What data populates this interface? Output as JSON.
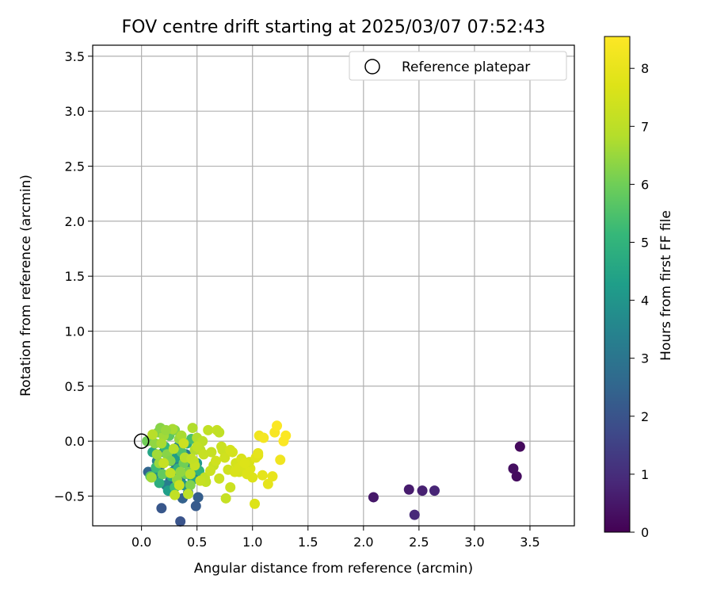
{
  "chart_data": {
    "type": "scatter",
    "title": "FOV centre drift starting at 2025/03/07 07:52:43",
    "xlabel": "Angular distance from reference (arcmin)",
    "ylabel": "Rotation from reference (arcmin)",
    "xlim": [
      -0.44,
      3.9
    ],
    "ylim": [
      -0.77,
      3.6
    ],
    "xticks": [
      "0.0",
      "0.5",
      "1.0",
      "1.5",
      "2.0",
      "2.5",
      "3.0",
      "3.5"
    ],
    "yticks": [
      "−0.5",
      "0.0",
      "0.5",
      "1.0",
      "1.5",
      "2.0",
      "2.5",
      "3.0",
      "3.5"
    ],
    "grid": true,
    "legend": {
      "label": "Reference platepar",
      "placement": "top-right"
    },
    "reference_point": {
      "x": 0.0,
      "y": 0.0
    },
    "colorbar": {
      "label": "Hours from first FF file",
      "range": [
        0,
        8.55
      ],
      "ticks": [
        "0",
        "1",
        "2",
        "3",
        "4",
        "5",
        "6",
        "7",
        "8"
      ],
      "colormap": "viridis"
    },
    "points": [
      [
        3.41,
        -0.05,
        0.2
      ],
      [
        3.35,
        -0.25,
        0.3
      ],
      [
        3.38,
        -0.32,
        0.25
      ],
      [
        2.09,
        -0.51,
        0.5
      ],
      [
        2.41,
        -0.44,
        0.6
      ],
      [
        2.53,
        -0.45,
        0.7
      ],
      [
        2.64,
        -0.45,
        0.8
      ],
      [
        2.46,
        -0.67,
        0.9
      ],
      [
        0.35,
        -0.73,
        2.0
      ],
      [
        0.18,
        -0.61,
        2.1
      ],
      [
        0.49,
        -0.59,
        2.2
      ],
      [
        0.51,
        -0.51,
        2.3
      ],
      [
        0.37,
        -0.52,
        2.4
      ],
      [
        0.06,
        -0.28,
        2.5
      ],
      [
        0.42,
        -0.47,
        2.6
      ],
      [
        0.26,
        -0.35,
        2.7
      ],
      [
        0.17,
        -0.22,
        2.8
      ],
      [
        0.47,
        -0.3,
        2.9
      ],
      [
        0.35,
        -0.36,
        3.0
      ],
      [
        0.3,
        -0.2,
        3.1
      ],
      [
        0.4,
        -0.12,
        3.2
      ],
      [
        0.22,
        -0.4,
        3.3
      ],
      [
        0.14,
        -0.18,
        3.4
      ],
      [
        0.33,
        -0.05,
        3.5
      ],
      [
        0.28,
        -0.28,
        3.6
      ],
      [
        0.44,
        -0.22,
        3.7
      ],
      [
        0.2,
        -0.1,
        3.8
      ],
      [
        0.12,
        -0.3,
        3.9
      ],
      [
        0.38,
        -0.4,
        4.0
      ],
      [
        0.5,
        -0.2,
        4.1
      ],
      [
        0.31,
        -0.15,
        4.2
      ],
      [
        0.24,
        -0.45,
        4.3
      ],
      [
        0.46,
        -0.35,
        4.4
      ],
      [
        0.1,
        -0.1,
        4.5
      ],
      [
        0.27,
        -0.32,
        4.6
      ],
      [
        0.41,
        -0.02,
        4.7
      ],
      [
        0.16,
        -0.38,
        4.8
      ],
      [
        0.52,
        -0.27,
        4.9
      ],
      [
        0.33,
        -0.25,
        5.0
      ],
      [
        0.21,
        -0.05,
        5.1
      ],
      [
        0.13,
        -0.24,
        5.2
      ],
      [
        0.3,
        -0.42,
        5.3
      ],
      [
        0.45,
        0.02,
        5.4
      ],
      [
        0.36,
        -0.1,
        5.5
      ],
      [
        0.08,
        -0.32,
        5.6
      ],
      [
        0.25,
        0.05,
        5.7
      ],
      [
        0.19,
        -0.3,
        5.8
      ],
      [
        0.4,
        -0.3,
        5.9
      ],
      [
        0.05,
        0.0,
        6.0
      ],
      [
        0.15,
        0.08,
        6.1
      ],
      [
        0.3,
        0.1,
        6.2
      ],
      [
        0.23,
        -0.12,
        6.3
      ],
      [
        0.12,
        -0.02,
        6.4
      ],
      [
        0.34,
        0.02,
        6.5
      ],
      [
        0.2,
        0.05,
        6.6
      ],
      [
        0.28,
        0.11,
        6.7
      ],
      [
        0.48,
        -0.08,
        6.8
      ],
      [
        0.1,
        0.06,
        6.9
      ],
      [
        0.38,
        -0.2,
        6.0
      ],
      [
        0.42,
        -0.28,
        6.1
      ],
      [
        0.26,
        -0.18,
        6.2
      ],
      [
        0.17,
        0.12,
        6.3
      ],
      [
        0.32,
        -0.35,
        6.4
      ],
      [
        0.22,
        0.1,
        6.5
      ],
      [
        0.14,
        -0.12,
        6.6
      ],
      [
        0.36,
        0.05,
        6.7
      ],
      [
        0.46,
        0.12,
        6.8
      ],
      [
        0.29,
        -0.07,
        6.9
      ],
      [
        0.44,
        -0.4,
        6.2
      ],
      [
        0.35,
        -0.28,
        6.4
      ],
      [
        0.16,
        -0.2,
        6.5
      ],
      [
        0.09,
        -0.33,
        6.6
      ],
      [
        0.18,
        -0.02,
        6.7
      ],
      [
        0.5,
        0.03,
        6.8
      ],
      [
        0.39,
        -0.15,
        6.9
      ],
      [
        0.47,
        -0.18,
        7.0
      ],
      [
        0.55,
        0.0,
        7.0
      ],
      [
        0.6,
        0.1,
        7.1
      ],
      [
        0.53,
        -0.08,
        7.0
      ],
      [
        0.57,
        -0.33,
        7.1
      ],
      [
        0.68,
        0.1,
        7.2
      ],
      [
        0.7,
        0.08,
        7.1
      ],
      [
        0.63,
        -0.1,
        7.2
      ],
      [
        0.58,
        -0.37,
        7.1
      ],
      [
        0.65,
        -0.22,
        7.2
      ],
      [
        0.72,
        -0.05,
        7.3
      ],
      [
        0.76,
        -0.52,
        7.2
      ],
      [
        0.8,
        -0.42,
        7.3
      ],
      [
        0.7,
        -0.34,
        7.3
      ],
      [
        0.73,
        -0.08,
        7.3
      ],
      [
        0.42,
        -0.48,
        7.0
      ],
      [
        0.3,
        -0.49,
        7.1
      ],
      [
        0.48,
        -0.22,
        7.2
      ],
      [
        0.5,
        -0.05,
        7.1
      ],
      [
        0.44,
        -0.3,
        7.0
      ],
      [
        0.56,
        -0.12,
        7.2
      ],
      [
        0.62,
        -0.27,
        7.3
      ],
      [
        0.26,
        -0.29,
        7.1
      ],
      [
        0.2,
        -0.2,
        7.2
      ],
      [
        0.38,
        -0.02,
        7.3
      ],
      [
        0.45,
        -0.16,
        7.1
      ],
      [
        0.53,
        -0.36,
        7.2
      ],
      [
        0.34,
        -0.4,
        7.3
      ],
      [
        0.67,
        -0.18,
        7.4
      ],
      [
        0.75,
        -0.15,
        7.4
      ],
      [
        0.78,
        -0.26,
        7.4
      ],
      [
        0.82,
        -0.1,
        7.5
      ],
      [
        0.85,
        -0.2,
        7.5
      ],
      [
        0.88,
        -0.28,
        7.5
      ],
      [
        0.9,
        -0.16,
        7.6
      ],
      [
        0.92,
        -0.23,
        7.6
      ],
      [
        0.95,
        -0.3,
        7.7
      ],
      [
        0.98,
        -0.25,
        7.7
      ],
      [
        1.0,
        -0.33,
        7.7
      ],
      [
        1.02,
        -0.57,
        7.7
      ],
      [
        0.97,
        -0.19,
        7.6
      ],
      [
        0.8,
        -0.08,
        7.5
      ],
      [
        0.88,
        -0.24,
        7.6
      ],
      [
        1.03,
        -0.15,
        7.8
      ],
      [
        1.05,
        -0.13,
        7.8
      ],
      [
        1.09,
        -0.31,
        7.9
      ],
      [
        1.14,
        -0.39,
        7.9
      ],
      [
        1.18,
        -0.32,
        8.0
      ],
      [
        1.06,
        0.05,
        8.2
      ],
      [
        1.1,
        0.03,
        8.3
      ],
      [
        1.2,
        0.08,
        8.4
      ],
      [
        1.22,
        0.14,
        8.5
      ],
      [
        1.28,
        0.0,
        8.5
      ],
      [
        1.3,
        0.05,
        8.5
      ],
      [
        1.25,
        -0.17,
        8.2
      ],
      [
        1.05,
        -0.11,
        7.9
      ],
      [
        0.93,
        -0.2,
        7.7
      ],
      [
        0.84,
        -0.28,
        7.6
      ]
    ]
  }
}
